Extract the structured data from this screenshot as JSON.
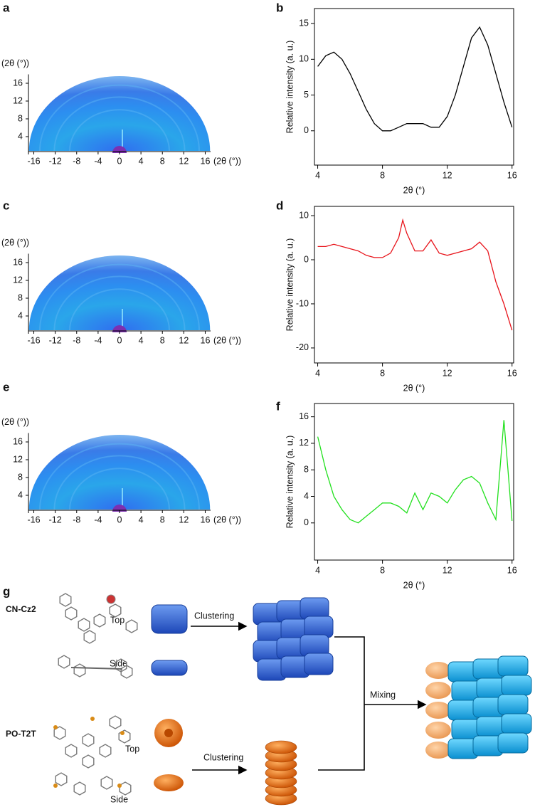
{
  "chart_data": [
    {
      "type": "image",
      "panel_label": "a",
      "x_label": "(2θ (°))",
      "y_label": "(2θ (°))",
      "xlim": [
        -17,
        17
      ],
      "ylim": [
        0,
        18
      ],
      "xticks": [
        -16,
        -12,
        -8,
        -4,
        0,
        4,
        8,
        12,
        16
      ],
      "yticks": [
        4,
        8,
        12,
        16
      ]
    },
    {
      "type": "line",
      "panel_label": "b",
      "x_label": "2θ (°)",
      "y_label": "Relative intensity (a. u.)",
      "xlim": [
        3.8,
        16.1
      ],
      "ylim": [
        -4.8,
        17.1
      ],
      "xticks": [
        4,
        8,
        12,
        16
      ],
      "yticks": [
        0,
        5,
        10,
        15
      ],
      "x": [
        4,
        4.5,
        5,
        5.5,
        6,
        6.5,
        7,
        7.5,
        8,
        8.5,
        9,
        9.5,
        10,
        10.5,
        11,
        11.5,
        12,
        12.5,
        13,
        13.5,
        14,
        14.5,
        15,
        15.5,
        16
      ],
      "series": [
        {
          "color": "#000000",
          "values": [
            9,
            10.5,
            11,
            10,
            8,
            5.5,
            3,
            1,
            0,
            0,
            0.5,
            1,
            1,
            1,
            0.5,
            0.5,
            2,
            5,
            9,
            13,
            14.5,
            12,
            8,
            4,
            0.5
          ]
        }
      ]
    },
    {
      "type": "image",
      "panel_label": "c",
      "x_label": "(2θ (°))",
      "y_label": "(2θ (°))",
      "xlim": [
        -17,
        17
      ],
      "ylim": [
        0,
        18
      ],
      "xticks": [
        -16,
        -12,
        -8,
        -4,
        0,
        4,
        8,
        12,
        16
      ],
      "yticks": [
        4,
        8,
        12,
        16
      ]
    },
    {
      "type": "line",
      "panel_label": "d",
      "x_label": "2θ (°)",
      "y_label": "Relative intensity (a. u.)",
      "xlim": [
        3.8,
        16.1
      ],
      "ylim": [
        -23.4,
        12.1
      ],
      "xticks": [
        4,
        8,
        12,
        16
      ],
      "yticks": [
        -20,
        -10,
        0,
        10
      ],
      "x": [
        4,
        4.5,
        5,
        5.5,
        6,
        6.5,
        7,
        7.5,
        8,
        8.5,
        9,
        9.25,
        9.5,
        10,
        10.5,
        11,
        11.5,
        12,
        12.5,
        13,
        13.5,
        14,
        14.5,
        15,
        15.5,
        16
      ],
      "series": [
        {
          "color": "#e8141b",
          "values": [
            3,
            3,
            3.5,
            3,
            2.5,
            2,
            1,
            0.5,
            0.5,
            1.5,
            5,
            9,
            6,
            2,
            2,
            4.5,
            1.5,
            1,
            1.5,
            2,
            2.5,
            4,
            2,
            -5,
            -10,
            -16
          ]
        }
      ]
    },
    {
      "type": "image",
      "panel_label": "e",
      "x_label": "(2θ (°))",
      "y_label": "(2θ (°))",
      "xlim": [
        -17,
        17
      ],
      "ylim": [
        0,
        18
      ],
      "xticks": [
        -16,
        -12,
        -8,
        -4,
        0,
        4,
        8,
        12,
        16
      ],
      "yticks": [
        4,
        8,
        12,
        16
      ]
    },
    {
      "type": "line",
      "panel_label": "f",
      "x_label": "2θ (°)",
      "y_label": "Relative intensity (a. u.)",
      "xlim": [
        3.8,
        16.1
      ],
      "ylim": [
        -5.6,
        18
      ],
      "xticks": [
        4,
        8,
        12,
        16
      ],
      "yticks": [
        0,
        4,
        8,
        12,
        16
      ],
      "x": [
        4,
        4.5,
        5,
        5.5,
        6,
        6.5,
        7,
        7.5,
        8,
        8.5,
        9,
        9.5,
        10,
        10.5,
        11,
        11.5,
        12,
        12.5,
        13,
        13.5,
        14,
        14.5,
        15,
        15.25,
        15.5,
        15.75,
        16
      ],
      "series": [
        {
          "color": "#22e01e",
          "values": [
            13,
            8,
            4,
            2,
            0.5,
            0,
            1,
            2,
            3,
            3,
            2.5,
            1.5,
            4.5,
            2,
            4.5,
            4,
            3,
            5,
            6.5,
            7,
            6,
            3,
            0.5,
            8,
            15.5,
            8,
            0.3
          ]
        }
      ]
    }
  ],
  "diagram": {
    "panel_label": "g",
    "groups": [
      {
        "name": "CN-Cz2",
        "top": "Top",
        "side": "Side",
        "process": "Clustering"
      },
      {
        "name": "PO-T2T",
        "top": "Top",
        "side": "Side",
        "process": "Clustering"
      }
    ],
    "combine": "Mixing"
  }
}
